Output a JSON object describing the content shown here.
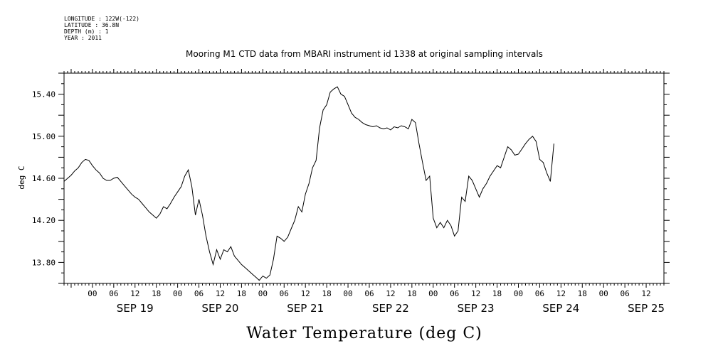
{
  "meta": {
    "longitude": "LONGITUDE : 122W(-122)",
    "latitude": "LATITUDE : 36.8N",
    "depth": "DEPTH (m) : 1",
    "year": "YEAR : 2011"
  },
  "chart_data": {
    "type": "line",
    "title": "Mooring M1 CTD data from MBARI instrument id 1338 at original sampling intervals",
    "xlabel": "Water Temperature (deg C)",
    "ylabel": "deg C",
    "y_ticks": [
      "13.80",
      "14.20",
      "14.60",
      "15.00",
      "15.40"
    ],
    "ylim": [
      13.6,
      15.6
    ],
    "hour_tick_labels": [
      "00",
      "06",
      "12",
      "18"
    ],
    "day_labels": [
      "SEP 19",
      "SEP 20",
      "SEP 21",
      "SEP 22",
      "SEP 23",
      "SEP 24",
      "SEP 25"
    ],
    "x_units": "hours since SEP 19 00:00",
    "xlim": [
      -8,
      161
    ],
    "grid": false,
    "series": [
      {
        "values": [
          [
            -8,
            14.57
          ],
          [
            -7,
            14.6
          ],
          [
            -6,
            14.63
          ],
          [
            -5,
            14.67
          ],
          [
            -4,
            14.7
          ],
          [
            -3,
            14.75
          ],
          [
            -2,
            14.78
          ],
          [
            -1,
            14.77
          ],
          [
            0,
            14.72
          ],
          [
            1,
            14.68
          ],
          [
            2,
            14.65
          ],
          [
            3,
            14.6
          ],
          [
            4,
            14.58
          ],
          [
            5,
            14.58
          ],
          [
            6,
            14.6
          ],
          [
            7,
            14.61
          ],
          [
            8,
            14.57
          ],
          [
            9,
            14.53
          ],
          [
            10,
            14.49
          ],
          [
            11,
            14.45
          ],
          [
            12,
            14.42
          ],
          [
            13,
            14.4
          ],
          [
            14,
            14.36
          ],
          [
            15,
            14.32
          ],
          [
            16,
            14.28
          ],
          [
            17,
            14.25
          ],
          [
            18,
            14.22
          ],
          [
            19,
            14.26
          ],
          [
            20,
            14.33
          ],
          [
            21,
            14.31
          ],
          [
            22,
            14.36
          ],
          [
            23,
            14.42
          ],
          [
            24,
            14.47
          ],
          [
            25,
            14.52
          ],
          [
            26,
            14.62
          ],
          [
            27,
            14.68
          ],
          [
            28,
            14.52
          ],
          [
            29,
            14.25
          ],
          [
            30,
            14.4
          ],
          [
            31,
            14.25
          ],
          [
            32,
            14.05
          ],
          [
            33,
            13.9
          ],
          [
            34,
            13.78
          ],
          [
            35,
            13.92
          ],
          [
            36,
            13.83
          ],
          [
            37,
            13.92
          ],
          [
            38,
            13.9
          ],
          [
            39,
            13.95
          ],
          [
            40,
            13.86
          ],
          [
            41,
            13.82
          ],
          [
            42,
            13.78
          ],
          [
            43,
            13.75
          ],
          [
            44,
            13.72
          ],
          [
            45,
            13.69
          ],
          [
            46,
            13.66
          ],
          [
            47,
            13.63
          ],
          [
            48,
            13.67
          ],
          [
            49,
            13.65
          ],
          [
            50,
            13.68
          ],
          [
            51,
            13.83
          ],
          [
            52,
            14.05
          ],
          [
            53,
            14.03
          ],
          [
            54,
            14.0
          ],
          [
            55,
            14.04
          ],
          [
            56,
            14.12
          ],
          [
            57,
            14.2
          ],
          [
            58,
            14.33
          ],
          [
            59,
            14.28
          ],
          [
            60,
            14.45
          ],
          [
            61,
            14.55
          ],
          [
            62,
            14.7
          ],
          [
            63,
            14.77
          ],
          [
            64,
            15.08
          ],
          [
            65,
            15.25
          ],
          [
            66,
            15.3
          ],
          [
            67,
            15.42
          ],
          [
            68,
            15.45
          ],
          [
            69,
            15.47
          ],
          [
            70,
            15.4
          ],
          [
            71,
            15.38
          ],
          [
            72,
            15.3
          ],
          [
            73,
            15.22
          ],
          [
            74,
            15.18
          ],
          [
            75,
            15.16
          ],
          [
            76,
            15.13
          ],
          [
            77,
            15.11
          ],
          [
            78,
            15.1
          ],
          [
            79,
            15.09
          ],
          [
            80,
            15.1
          ],
          [
            81,
            15.08
          ],
          [
            82,
            15.07
          ],
          [
            83,
            15.08
          ],
          [
            84,
            15.06
          ],
          [
            85,
            15.09
          ],
          [
            86,
            15.08
          ],
          [
            87,
            15.1
          ],
          [
            88,
            15.09
          ],
          [
            89,
            15.07
          ],
          [
            90,
            15.16
          ],
          [
            91,
            15.13
          ],
          [
            92,
            14.93
          ],
          [
            93,
            14.75
          ],
          [
            94,
            14.58
          ],
          [
            95,
            14.62
          ],
          [
            96,
            14.22
          ],
          [
            97,
            14.13
          ],
          [
            98,
            14.18
          ],
          [
            99,
            14.13
          ],
          [
            100,
            14.2
          ],
          [
            101,
            14.15
          ],
          [
            102,
            14.05
          ],
          [
            103,
            14.1
          ],
          [
            104,
            14.42
          ],
          [
            105,
            14.38
          ],
          [
            106,
            14.62
          ],
          [
            107,
            14.58
          ],
          [
            108,
            14.5
          ],
          [
            109,
            14.42
          ],
          [
            110,
            14.5
          ],
          [
            111,
            14.55
          ],
          [
            112,
            14.62
          ],
          [
            113,
            14.67
          ],
          [
            114,
            14.72
          ],
          [
            115,
            14.7
          ],
          [
            116,
            14.8
          ],
          [
            117,
            14.9
          ],
          [
            118,
            14.87
          ],
          [
            119,
            14.82
          ],
          [
            120,
            14.83
          ],
          [
            121,
            14.88
          ],
          [
            122,
            14.93
          ],
          [
            123,
            14.97
          ],
          [
            124,
            15.0
          ],
          [
            125,
            14.95
          ],
          [
            126,
            14.78
          ],
          [
            127,
            14.75
          ],
          [
            128,
            14.65
          ],
          [
            129,
            14.57
          ],
          [
            130,
            14.93
          ]
        ]
      }
    ]
  },
  "colors": {
    "line": "#000000",
    "background": "#ffffff"
  }
}
